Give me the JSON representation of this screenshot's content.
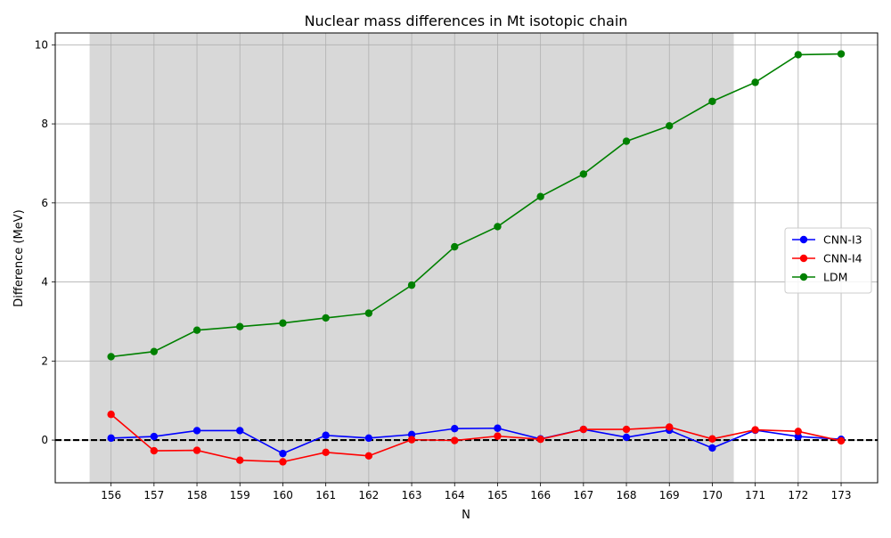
{
  "chart_data": {
    "type": "line",
    "title": "Nuclear mass differences in Mt isotopic chain",
    "xlabel": "N",
    "ylabel": "Difference (MeV)",
    "x": [
      156,
      157,
      158,
      159,
      160,
      161,
      162,
      163,
      164,
      165,
      166,
      167,
      168,
      169,
      170,
      171,
      172,
      173
    ],
    "xlim": [
      154.7,
      173.85
    ],
    "ylim": [
      -1.08,
      10.3
    ],
    "yticks": [
      0,
      2,
      4,
      6,
      8,
      10
    ],
    "grid": true,
    "legend_position": "center-right",
    "shaded_region": [
      155.5,
      170.5
    ],
    "shaded_color": "#d8d8d8",
    "reference_line": {
      "y": 0,
      "style": "dashed",
      "color": "#000000"
    },
    "series": [
      {
        "name": "CNN-I3",
        "color": "#0000ff",
        "values": [
          0.05,
          0.09,
          0.24,
          0.24,
          -0.34,
          0.12,
          0.05,
          0.14,
          0.29,
          0.3,
          0.03,
          0.27,
          0.07,
          0.25,
          -0.2,
          0.25,
          0.09,
          0.02
        ]
      },
      {
        "name": "CNN-I4",
        "color": "#ff0000",
        "values": [
          0.65,
          -0.27,
          -0.26,
          -0.51,
          -0.55,
          -0.31,
          -0.4,
          0.01,
          -0.01,
          0.1,
          0.02,
          0.27,
          0.27,
          0.33,
          0.03,
          0.26,
          0.22,
          -0.02
        ]
      },
      {
        "name": "LDM",
        "color": "#008000",
        "values": [
          2.11,
          2.24,
          2.78,
          2.87,
          2.96,
          3.09,
          3.21,
          3.92,
          4.89,
          5.4,
          6.16,
          6.73,
          7.56,
          7.95,
          8.57,
          9.05,
          9.75,
          9.77
        ]
      }
    ]
  }
}
